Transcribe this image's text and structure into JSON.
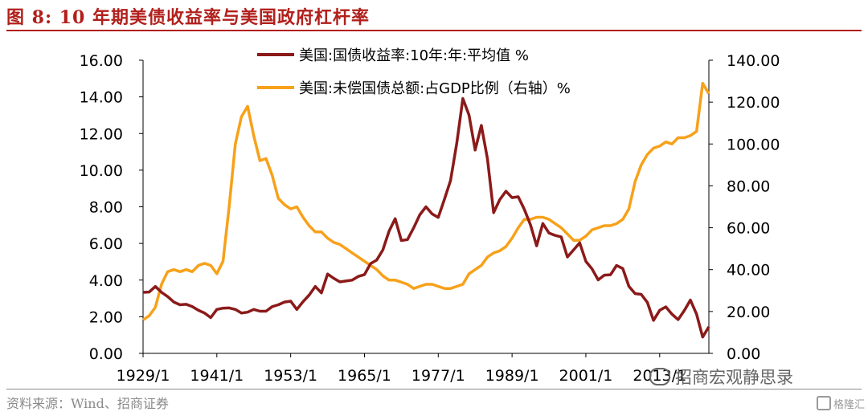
{
  "figure_title": "图 8:   10 年期美债收益率与美国政府杠杆率",
  "source": "资料来源：Wind、招商证券",
  "watermark": "招商宏观静思录",
  "corner_mark": "格隆汇",
  "colors": {
    "yield": "#8b1a1a",
    "debt": "#f7a11a",
    "accent": "#b1201c"
  },
  "chart_data": {
    "type": "line",
    "x_ticks": [
      "1929/1",
      "1941/1",
      "1953/1",
      "1965/1",
      "1977/1",
      "1989/1",
      "2001/1",
      "2013/1"
    ],
    "x_range": [
      1929,
      2021
    ],
    "y_left": {
      "ylim": [
        0,
        16
      ],
      "ticks": [
        "0.00",
        "2.00",
        "4.00",
        "6.00",
        "8.00",
        "10.00",
        "12.00",
        "14.00",
        "16.00"
      ]
    },
    "y_right": {
      "ylim": [
        0,
        140
      ],
      "ticks": [
        "0.00",
        "20.00",
        "40.00",
        "60.00",
        "80.00",
        "100.00",
        "120.00",
        "140.00"
      ]
    },
    "legend_position": "top-center",
    "series": [
      {
        "name": "美国:国债收益率:10年:年:平均值 %",
        "axis": "left",
        "x": [
          1929,
          1930,
          1931,
          1932,
          1933,
          1934,
          1935,
          1936,
          1937,
          1938,
          1939,
          1940,
          1941,
          1942,
          1943,
          1944,
          1945,
          1946,
          1947,
          1948,
          1949,
          1950,
          1951,
          1952,
          1953,
          1954,
          1955,
          1956,
          1957,
          1958,
          1959,
          1960,
          1961,
          1962,
          1963,
          1964,
          1965,
          1966,
          1967,
          1968,
          1969,
          1970,
          1971,
          1972,
          1973,
          1974,
          1975,
          1976,
          1977,
          1978,
          1979,
          1980,
          1981,
          1982,
          1983,
          1984,
          1985,
          1986,
          1987,
          1988,
          1989,
          1990,
          1991,
          1992,
          1993,
          1994,
          1995,
          1996,
          1997,
          1998,
          1999,
          2000,
          2001,
          2002,
          2003,
          2004,
          2005,
          2006,
          2007,
          2008,
          2009,
          2010,
          2011,
          2012,
          2013,
          2014,
          2015,
          2016,
          2017,
          2018,
          2019,
          2020,
          2021
        ],
        "values": [
          3.33,
          3.35,
          3.65,
          3.33,
          3.1,
          2.8,
          2.65,
          2.68,
          2.55,
          2.35,
          2.2,
          1.95,
          2.4,
          2.47,
          2.48,
          2.4,
          2.2,
          2.25,
          2.4,
          2.3,
          2.3,
          2.55,
          2.65,
          2.8,
          2.85,
          2.4,
          2.82,
          3.18,
          3.65,
          3.3,
          4.33,
          4.1,
          3.9,
          3.95,
          4.0,
          4.2,
          4.3,
          4.9,
          5.1,
          5.65,
          6.67,
          7.35,
          6.16,
          6.21,
          6.85,
          7.56,
          8.0,
          7.61,
          7.42,
          8.41,
          9.44,
          11.46,
          13.91,
          13.0,
          11.1,
          12.44,
          10.62,
          7.68,
          8.39,
          8.85,
          8.5,
          8.55,
          7.86,
          7.01,
          5.87,
          7.09,
          6.57,
          6.44,
          6.35,
          5.26,
          5.65,
          6.03,
          5.02,
          4.61,
          4.01,
          4.27,
          4.29,
          4.8,
          4.63,
          3.66,
          3.26,
          3.22,
          2.78,
          1.8,
          2.35,
          2.54,
          2.14,
          1.84,
          2.33,
          2.91,
          2.14,
          0.89,
          1.45
        ]
      },
      {
        "name": "美国:未偿国债总额:占GDP比例（右轴）%",
        "axis": "right",
        "x": [
          1929,
          1930,
          1931,
          1932,
          1933,
          1934,
          1935,
          1936,
          1937,
          1938,
          1939,
          1940,
          1941,
          1942,
          1943,
          1944,
          1945,
          1946,
          1947,
          1948,
          1949,
          1950,
          1951,
          1952,
          1953,
          1954,
          1955,
          1956,
          1957,
          1958,
          1959,
          1960,
          1961,
          1962,
          1963,
          1964,
          1965,
          1966,
          1967,
          1968,
          1969,
          1970,
          1971,
          1972,
          1973,
          1974,
          1975,
          1976,
          1977,
          1978,
          1979,
          1980,
          1981,
          1982,
          1983,
          1984,
          1985,
          1986,
          1987,
          1988,
          1989,
          1990,
          1991,
          1992,
          1993,
          1994,
          1995,
          1996,
          1997,
          1998,
          1999,
          2000,
          2001,
          2002,
          2003,
          2004,
          2005,
          2006,
          2007,
          2008,
          2009,
          2010,
          2011,
          2012,
          2013,
          2014,
          2015,
          2016,
          2017,
          2018,
          2019,
          2020,
          2021
        ],
        "values": [
          16,
          18,
          22,
          33,
          39,
          40,
          39,
          40,
          39,
          42,
          43,
          42,
          38,
          44,
          70,
          100,
          113,
          118,
          104,
          92,
          93,
          85,
          74,
          71,
          69,
          70,
          65,
          61,
          58,
          58,
          55,
          53,
          52,
          50,
          48,
          46,
          44,
          42,
          40,
          37,
          35,
          35,
          34,
          33,
          31,
          32,
          33,
          33,
          32,
          31,
          31,
          32,
          33,
          38,
          40,
          42,
          46,
          48,
          49,
          51,
          55,
          60,
          64,
          64,
          65,
          65,
          64,
          62,
          60,
          57,
          54,
          54,
          56,
          59,
          60,
          61,
          61,
          62,
          64,
          69,
          82,
          90,
          95,
          98,
          99,
          101,
          100,
          103,
          103,
          104,
          106,
          129,
          124
        ]
      }
    ]
  }
}
